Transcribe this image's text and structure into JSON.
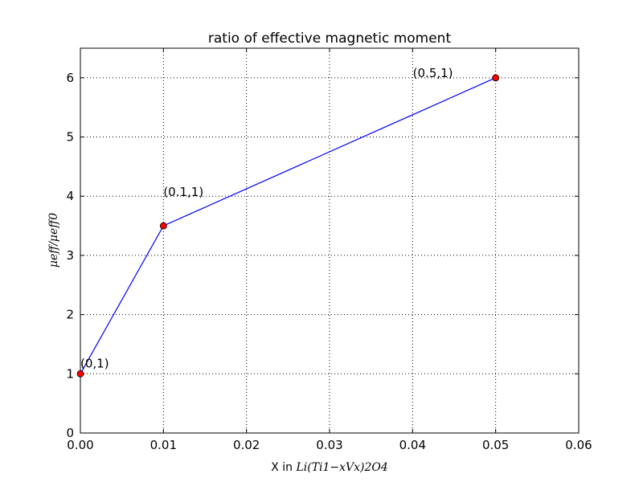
{
  "chart_data": {
    "type": "line",
    "title": "ratio of effective magnetic moment",
    "xlabel": {
      "prefix": "X in ",
      "formula": "Li(Ti1−xVx)2O4"
    },
    "ylabel": "μeff/μeff0",
    "xlim": [
      0.0,
      0.06
    ],
    "ylim": [
      0,
      6.5
    ],
    "x_ticks": [
      "0.00",
      "0.01",
      "0.02",
      "0.03",
      "0.04",
      "0.05",
      "0.06"
    ],
    "y_ticks": [
      "0",
      "1",
      "2",
      "3",
      "4",
      "5",
      "6"
    ],
    "grid": true,
    "grid_style": "dotted",
    "line_color": "#0000ff",
    "marker_color": "#ff0000",
    "x": [
      0.0,
      0.01,
      0.05
    ],
    "y": [
      1.0,
      3.5,
      6.0
    ],
    "annotations": [
      {
        "text": "(0,1)",
        "x": 0.0,
        "y": 1.0
      },
      {
        "text": "(0.1,1)",
        "x": 0.01,
        "y": 3.5
      },
      {
        "text": "(0.5,1)",
        "x": 0.05,
        "y": 6.0
      }
    ]
  }
}
